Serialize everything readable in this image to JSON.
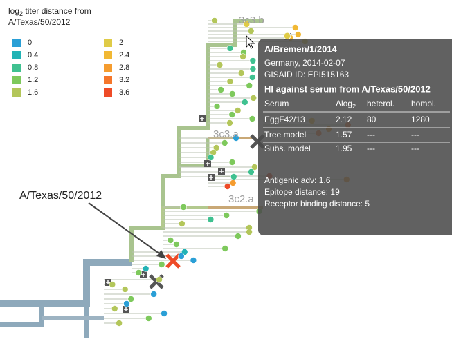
{
  "legend": {
    "title_prefix": "log",
    "title_sub": "2",
    "title_rest": " titer distance from",
    "title_line2": "A/Texas/50/2012",
    "items": [
      {
        "label": 0,
        "color": "#2a9fd6"
      },
      {
        "label": 0.4,
        "color": "#22b3b5"
      },
      {
        "label": 0.8,
        "color": "#3fc190"
      },
      {
        "label": 1.2,
        "color": "#7ec95c"
      },
      {
        "label": 1.6,
        "color": "#b3c65a"
      },
      {
        "label": 2,
        "color": "#dfcb47"
      },
      {
        "label": 2.4,
        "color": "#f1b834"
      },
      {
        "label": 2.8,
        "color": "#f59c2f"
      },
      {
        "label": 3.2,
        "color": "#f5762b"
      },
      {
        "label": 3.6,
        "color": "#ee4b27"
      }
    ]
  },
  "clades": [
    "3c3.b",
    "3c3.a",
    "3c2.a"
  ],
  "annotation": "A/Texas/50/2012",
  "tooltip": {
    "strain": "A/Bremen/1/2014",
    "location": "Germany, 2014-02-07",
    "gisaid": "GISAID ID: EPI515163",
    "hi_title": "HI against serum from A/Texas/50/2012",
    "header": {
      "serum": "Serum",
      "dlog_prefix": "Δlog",
      "dlog_sub": "2",
      "heterol": "heterol.",
      "homol": "homol."
    },
    "rows": [
      [
        "EggF42/13",
        "2.12",
        "80",
        "1280"
      ],
      [
        "Tree model",
        "1.57",
        "---",
        "---"
      ],
      [
        "Subs. model",
        "1.95",
        "---",
        "---"
      ]
    ],
    "antigenic": "Antigenic adv: 1.6",
    "epitope": "Epitope distance: 19",
    "receptor": "Receptor binding distance: 5"
  }
}
